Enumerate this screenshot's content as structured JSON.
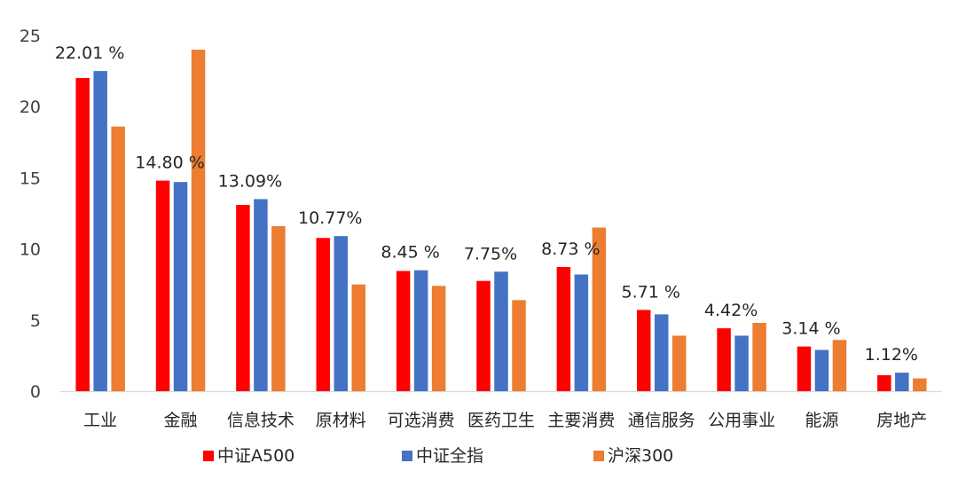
{
  "chart_data": {
    "type": "bar",
    "title": "",
    "xlabel": "",
    "ylabel": "",
    "ylim": [
      0,
      25
    ],
    "yticks": [
      0,
      5,
      10,
      15,
      20,
      25
    ],
    "grid": false,
    "legend_position": "bottom",
    "categories": [
      "工业",
      "金融",
      "信息技术",
      "原材料",
      "可选消费",
      "医药卫生",
      "主要消费",
      "通信服务",
      "公用事业",
      "能源",
      "房地产"
    ],
    "series": [
      {
        "name": "中证A500",
        "color": "#ff0000",
        "values": [
          22.01,
          14.8,
          13.09,
          10.77,
          8.45,
          7.75,
          8.73,
          5.71,
          4.42,
          3.14,
          1.12
        ]
      },
      {
        "name": "中证全指",
        "color": "#4472c4",
        "values": [
          22.5,
          14.7,
          13.5,
          10.9,
          8.5,
          8.4,
          8.2,
          5.4,
          3.9,
          2.9,
          1.3
        ]
      },
      {
        "name": "沪深300",
        "color": "#ed7d31",
        "values": [
          18.6,
          24.0,
          11.6,
          7.5,
          7.4,
          6.4,
          11.5,
          3.9,
          4.8,
          3.6,
          0.9
        ]
      }
    ],
    "data_labels": [
      "22.01 %",
      "14.80 %",
      "13.09%",
      "10.77%",
      "8.45 %",
      "7.75%",
      "8.73 %",
      "5.71 %",
      "4.42%",
      "3.14 %",
      "1.12%"
    ]
  }
}
